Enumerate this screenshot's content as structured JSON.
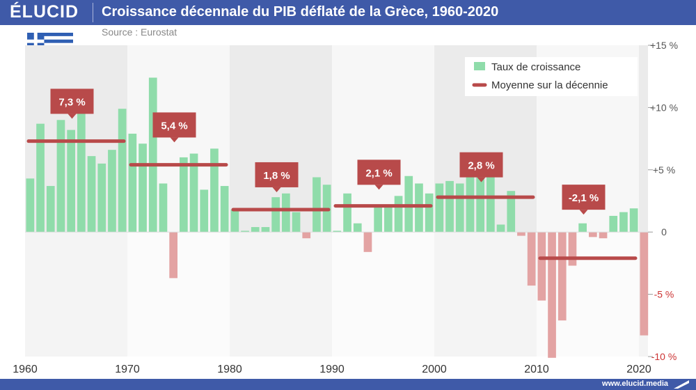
{
  "header": {
    "brand": "ÉLUCID",
    "title": "Croissance décennale du PIB déflaté de la Grèce, 1960-2020"
  },
  "source": "Source : Eurostat",
  "footer": {
    "url": "www.elucid.media"
  },
  "colors": {
    "header_bg": "#3f5aa8",
    "positive_bar": "#8fdcaa",
    "negative_bar": "#e3a3a3",
    "average_line": "#b84a4a",
    "callout_bg": "#b84a4a",
    "negative_tick": "#cc3333",
    "band_dark": "#ebebeb",
    "band_light": "#f7f7f7"
  },
  "flag_icon": "greece-flag-icon",
  "chart_data": {
    "type": "bar",
    "title": "Croissance décennale du PIB déflaté de la Grèce, 1960-2020",
    "xlim": [
      1960,
      2020
    ],
    "ylim": [
      -10,
      15
    ],
    "grid": false,
    "legend_position": "top-right",
    "x_ticks": [
      "1960",
      "1970",
      "1980",
      "1990",
      "2000",
      "2010",
      "2020"
    ],
    "y_ticks": [
      {
        "value": 15,
        "label": "+15 %"
      },
      {
        "value": 10,
        "label": "+10 %"
      },
      {
        "value": 5,
        "label": "+5 %"
      },
      {
        "value": 0,
        "label": "0"
      },
      {
        "value": -5,
        "label": "-5 %"
      },
      {
        "value": -10,
        "label": "-10 %"
      }
    ],
    "legend": {
      "bars": "Taux de croissance",
      "line": "Moyenne sur la décennie"
    },
    "series": [
      {
        "name": "Taux de croissance",
        "years": [
          1960,
          1961,
          1962,
          1963,
          1964,
          1965,
          1966,
          1967,
          1968,
          1969,
          1970,
          1971,
          1972,
          1973,
          1974,
          1975,
          1976,
          1977,
          1978,
          1979,
          1980,
          1981,
          1982,
          1983,
          1984,
          1985,
          1986,
          1987,
          1988,
          1989,
          1990,
          1991,
          1992,
          1993,
          1994,
          1995,
          1996,
          1997,
          1998,
          1999,
          2000,
          2001,
          2002,
          2003,
          2004,
          2005,
          2006,
          2007,
          2008,
          2009,
          2010,
          2011,
          2012,
          2013,
          2014,
          2015,
          2016,
          2017,
          2018,
          2019,
          2020
        ],
        "values": [
          4.3,
          8.7,
          3.7,
          9.0,
          8.2,
          9.5,
          6.1,
          5.5,
          6.6,
          9.9,
          7.9,
          7.1,
          12.4,
          3.9,
          -3.7,
          6.0,
          6.3,
          3.4,
          6.7,
          3.7,
          1.8,
          0.1,
          0.4,
          0.4,
          2.8,
          3.1,
          1.6,
          -0.5,
          4.4,
          3.8,
          0.1,
          3.1,
          0.7,
          -1.6,
          2.0,
          2.1,
          2.9,
          4.5,
          3.9,
          3.1,
          3.9,
          4.1,
          3.9,
          5.8,
          5.1,
          4.4,
          0.6,
          3.3,
          -0.3,
          -4.3,
          -5.5,
          -10.1,
          -7.1,
          -2.7,
          0.7,
          -0.4,
          -0.5,
          1.3,
          1.6,
          1.9,
          -8.3
        ]
      },
      {
        "name": "Moyenne sur la décennie",
        "decades": [
          {
            "start": 1960,
            "end": 1970,
            "value": 7.3,
            "label": "7,3 %"
          },
          {
            "start": 1970,
            "end": 1980,
            "value": 5.4,
            "label": "5,4 %"
          },
          {
            "start": 1980,
            "end": 1990,
            "value": 1.8,
            "label": "1,8 %"
          },
          {
            "start": 1990,
            "end": 2000,
            "value": 2.1,
            "label": "2,1 %"
          },
          {
            "start": 2000,
            "end": 2010,
            "value": 2.8,
            "label": "2,8 %"
          },
          {
            "start": 2010,
            "end": 2020,
            "value": -2.1,
            "label": "-2,1 %"
          }
        ]
      }
    ],
    "callout_values": [
      10.5,
      8.6,
      4.6,
      4.8,
      5.4,
      2.8
    ]
  }
}
